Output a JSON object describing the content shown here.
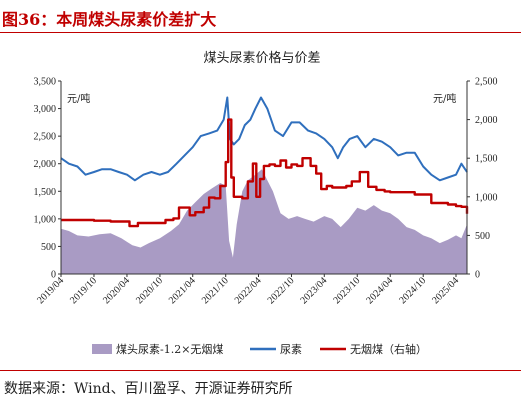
{
  "figure": {
    "caption": "图36：本周煤头尿素价差扩大",
    "source": "数据来源：Wind、百川盈孚、开源证券研究所"
  },
  "colors": {
    "area": "#a99bc4",
    "urea": "#2f6fbd",
    "coal": "#c00000",
    "caption": "#c00000"
  },
  "chart_data": {
    "type": "line",
    "title": "煤头尿素价格与价差",
    "y_left": {
      "label": "元/吨",
      "range": [
        0,
        3500
      ],
      "ticks": [
        0,
        500,
        1000,
        1500,
        2000,
        2500,
        3000,
        3500
      ]
    },
    "y_right": {
      "label": "元/吨",
      "range": [
        0,
        2500
      ],
      "ticks": [
        0,
        500,
        1000,
        1500,
        2000,
        2500
      ]
    },
    "x_range": [
      "2019-04-01",
      "2025-06-01"
    ],
    "x_ticks": [
      "2019/04",
      "2019/10",
      "2020/04",
      "2020/10",
      "2021/04",
      "2021/10",
      "2022/04",
      "2022/10",
      "2023/04",
      "2023/10",
      "2024/04",
      "2024/10",
      "2025/04"
    ],
    "legend_position": "bottom",
    "series": [
      {
        "name": "煤头尿素-1.2×无烟煤",
        "type": "area",
        "axis": "left",
        "x": [
          "2019-04-01",
          "2019-05-15",
          "2019-07-01",
          "2019-09-01",
          "2019-11-01",
          "2020-01-01",
          "2020-03-01",
          "2020-05-01",
          "2020-06-15",
          "2020-08-01",
          "2020-10-01",
          "2020-12-01",
          "2021-01-15",
          "2021-03-01",
          "2021-04-15",
          "2021-06-01",
          "2021-07-15",
          "2021-09-01",
          "2021-10-01",
          "2021-10-20",
          "2021-11-10",
          "2021-12-01",
          "2022-01-01",
          "2022-02-01",
          "2022-03-15",
          "2022-04-20",
          "2022-05-20",
          "2022-06-20",
          "2022-08-01",
          "2022-09-15",
          "2022-11-01",
          "2022-12-15",
          "2023-02-01",
          "2023-04-01",
          "2023-05-15",
          "2023-07-01",
          "2023-08-15",
          "2023-10-01",
          "2023-11-15",
          "2024-01-01",
          "2024-02-15",
          "2024-04-01",
          "2024-05-15",
          "2024-07-01",
          "2024-08-15",
          "2024-10-01",
          "2024-11-15",
          "2025-01-01",
          "2025-02-15",
          "2025-04-01",
          "2025-05-01",
          "2025-06-01"
        ],
        "values": [
          820,
          780,
          700,
          680,
          720,
          740,
          650,
          520,
          480,
          560,
          650,
          780,
          900,
          1150,
          1300,
          1450,
          1550,
          1650,
          1600,
          600,
          300,
          900,
          1500,
          1700,
          1800,
          1900,
          1700,
          1500,
          1100,
          1000,
          1050,
          1000,
          950,
          1050,
          1000,
          850,
          1000,
          1200,
          1150,
          1250,
          1150,
          1100,
          1000,
          850,
          800,
          700,
          650,
          560,
          620,
          700,
          650,
          900
        ]
      },
      {
        "name": "尿素",
        "type": "line",
        "axis": "left",
        "x": [
          "2019-04-01",
          "2019-05-15",
          "2019-07-01",
          "2019-08-15",
          "2019-10-01",
          "2019-11-15",
          "2020-01-01",
          "2020-02-15",
          "2020-04-01",
          "2020-05-15",
          "2020-07-01",
          "2020-08-15",
          "2020-10-01",
          "2020-11-15",
          "2021-01-01",
          "2021-02-15",
          "2021-04-01",
          "2021-05-15",
          "2021-07-01",
          "2021-08-15",
          "2021-09-20",
          "2021-10-10",
          "2021-10-25",
          "2021-11-15",
          "2021-12-15",
          "2022-01-15",
          "2022-02-15",
          "2022-03-15",
          "2022-04-15",
          "2022-05-20",
          "2022-07-01",
          "2022-08-15",
          "2022-10-01",
          "2022-11-15",
          "2023-01-01",
          "2023-02-15",
          "2023-04-01",
          "2023-05-15",
          "2023-06-15",
          "2023-07-15",
          "2023-08-20",
          "2023-10-01",
          "2023-11-15",
          "2024-01-01",
          "2024-02-15",
          "2024-04-01",
          "2024-05-15",
          "2024-07-01",
          "2024-08-15",
          "2024-10-01",
          "2024-11-15",
          "2025-01-01",
          "2025-02-15",
          "2025-04-01",
          "2025-05-01",
          "2025-06-01"
        ],
        "values": [
          2100,
          2000,
          1950,
          1800,
          1850,
          1900,
          1900,
          1850,
          1800,
          1700,
          1800,
          1850,
          1800,
          1850,
          2000,
          2150,
          2300,
          2500,
          2550,
          2600,
          2800,
          3200,
          2450,
          2350,
          2450,
          2700,
          2800,
          3000,
          3200,
          3000,
          2600,
          2500,
          2750,
          2750,
          2600,
          2550,
          2450,
          2300,
          2100,
          2300,
          2450,
          2500,
          2300,
          2450,
          2400,
          2300,
          2150,
          2200,
          2200,
          1950,
          1800,
          1700,
          1750,
          1800,
          2000,
          1850
        ]
      },
      {
        "name": "无烟煤（右轴）",
        "type": "line",
        "axis": "right",
        "step": true,
        "x": [
          "2019-04-01",
          "2019-07-01",
          "2019-10-01",
          "2020-01-01",
          "2020-03-01",
          "2020-04-15",
          "2020-06-01",
          "2020-07-15",
          "2020-09-01",
          "2020-11-01",
          "2020-12-15",
          "2021-01-15",
          "2021-03-15",
          "2021-04-15",
          "2021-06-01",
          "2021-07-01",
          "2021-08-01",
          "2021-09-01",
          "2021-10-01",
          "2021-10-15",
          "2021-11-01",
          "2021-11-15",
          "2022-01-01",
          "2022-02-01",
          "2022-03-01",
          "2022-03-20",
          "2022-04-10",
          "2022-05-01",
          "2022-06-01",
          "2022-07-01",
          "2022-08-01",
          "2022-09-01",
          "2022-10-01",
          "2022-11-01",
          "2022-12-01",
          "2023-01-15",
          "2023-02-15",
          "2023-03-15",
          "2023-04-15",
          "2023-05-15",
          "2023-06-15",
          "2023-08-01",
          "2023-09-01",
          "2023-10-15",
          "2023-12-01",
          "2024-01-15",
          "2024-03-01",
          "2024-04-01",
          "2024-05-15",
          "2024-07-01",
          "2024-08-15",
          "2024-10-01",
          "2024-11-15",
          "2025-01-01",
          "2025-02-15",
          "2025-04-01",
          "2025-05-01",
          "2025-06-01"
        ],
        "values": [
          700,
          700,
          690,
          680,
          680,
          620,
          660,
          660,
          660,
          700,
          720,
          860,
          760,
          800,
          860,
          990,
          980,
          1140,
          1450,
          2000,
          1250,
          1000,
          980,
          1200,
          1430,
          1000,
          1230,
          1400,
          1420,
          1400,
          1470,
          1380,
          1420,
          1400,
          1500,
          1400,
          1300,
          1100,
          1140,
          1120,
          1120,
          1140,
          1200,
          1320,
          1130,
          1090,
          1070,
          1060,
          1060,
          1060,
          1030,
          1030,
          920,
          920,
          900,
          880,
          870,
          780
        ]
      }
    ]
  }
}
